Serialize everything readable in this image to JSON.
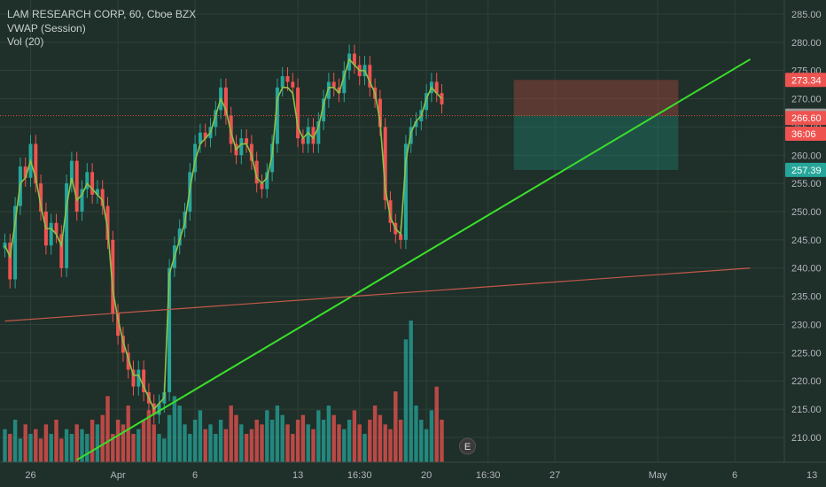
{
  "legend": {
    "symbol": "LAM RESEARCH CORP, 60, Cboe BZX",
    "vwap": "VWAP (Session)",
    "vol": "Vol (20)"
  },
  "colors": {
    "background": "#1f2f29",
    "grid": "#2e4038",
    "up": "#26a69a",
    "down": "#ef5350",
    "vwap": "#8bc34a",
    "trendline_green": "#39e02a",
    "trendline_red": "#c15a4a",
    "axis_text": "#b2b5be",
    "price_line": "#e0573a"
  },
  "chart_data": {
    "type": "candlestick",
    "title": "LAM RESEARCH CORP, 60, Cboe BZX",
    "xlabel": "",
    "ylabel": "",
    "ylim": [
      205.6,
      287.5
    ],
    "y_ticks": [
      210,
      215,
      220,
      225,
      230,
      235,
      240,
      245,
      250,
      255,
      260,
      265,
      270,
      275,
      280,
      285
    ],
    "x_ticks": [
      {
        "label": "26",
        "bar": 5
      },
      {
        "label": "Apr",
        "bar": 22
      },
      {
        "label": "6",
        "bar": 37
      },
      {
        "label": "13",
        "bar": 57
      },
      {
        "label": "16:30",
        "bar": 69
      },
      {
        "label": "20",
        "bar": 82
      },
      {
        "label": "16:30",
        "bar": 94
      },
      {
        "label": "27",
        "bar": 107
      },
      {
        "label": "May",
        "bar": 127
      },
      {
        "label": "6",
        "bar": 142
      },
      {
        "label": "13",
        "bar": 157
      }
    ],
    "series_close": [
      244.5,
      238,
      251,
      258,
      256,
      262,
      255,
      250,
      244,
      248,
      246,
      240,
      255,
      259,
      250,
      254,
      257,
      253,
      254,
      251,
      245,
      232,
      228,
      225,
      222,
      219,
      222,
      218,
      216,
      214,
      216,
      218,
      240,
      244,
      247,
      250,
      257,
      262,
      264,
      263,
      265,
      268,
      272,
      267,
      262,
      260,
      263,
      262,
      259,
      255,
      254,
      257,
      262,
      272,
      274,
      273,
      272,
      263,
      262,
      265,
      262,
      266,
      270,
      273,
      272,
      271,
      275,
      278,
      276,
      274,
      276,
      272,
      270,
      265,
      252,
      248,
      246,
      245,
      262,
      265,
      266,
      268,
      271,
      273,
      271,
      269,
      null,
      null,
      null,
      null,
      null,
      null,
      null,
      null,
      null,
      null,
      null,
      null,
      null,
      null,
      null,
      null,
      null,
      null,
      null,
      null,
      null,
      null,
      null,
      null,
      null,
      null,
      null,
      null,
      null,
      null,
      null,
      null,
      null,
      null,
      null,
      null,
      null,
      null,
      null,
      null,
      null,
      null,
      null,
      null,
      null,
      null,
      null,
      null,
      null,
      null,
      null,
      null,
      null,
      null,
      null,
      null,
      null,
      null,
      null,
      null,
      null,
      null,
      null,
      null,
      null,
      null,
      null,
      null,
      null,
      null,
      null,
      null,
      null
    ],
    "vwap": [
      244,
      242,
      248,
      255,
      256,
      259,
      256,
      251,
      247,
      247,
      246,
      244,
      251,
      256,
      252,
      253,
      255,
      254,
      253,
      252,
      247,
      236,
      231,
      227,
      224,
      221,
      221,
      219,
      217,
      215,
      216,
      217,
      239,
      242,
      245,
      248,
      254,
      259,
      262,
      263,
      264,
      267,
      270,
      268,
      264,
      261,
      262,
      262,
      260,
      256,
      255,
      256,
      260,
      270,
      272,
      272,
      271,
      265,
      263,
      264,
      263,
      265,
      269,
      272,
      272,
      271,
      274,
      277,
      276,
      275,
      275,
      273,
      271,
      266,
      254,
      249,
      247,
      246,
      259,
      264,
      266,
      267,
      270,
      272,
      271,
      270
    ],
    "volume": [
      7,
      6,
      9,
      5,
      8,
      6,
      7,
      5,
      8,
      6,
      9,
      5,
      7,
      6,
      8,
      7,
      6,
      9,
      8,
      10,
      14,
      6,
      9,
      8,
      12,
      6,
      7,
      9,
      11,
      8,
      6,
      5,
      10,
      14,
      12,
      8,
      6,
      9,
      11,
      7,
      8,
      6,
      9,
      7,
      12,
      10,
      8,
      6,
      7,
      9,
      8,
      11,
      9,
      12,
      10,
      8,
      6,
      9,
      10,
      8,
      7,
      11,
      9,
      12,
      10,
      8,
      7,
      9,
      11,
      8,
      6,
      9,
      12,
      10,
      8,
      7,
      15,
      9,
      26,
      30,
      12,
      9,
      7,
      11,
      16,
      9
    ],
    "volume_dir": [
      1,
      0,
      1,
      1,
      0,
      1,
      0,
      0,
      0,
      1,
      0,
      0,
      1,
      1,
      0,
      1,
      1,
      0,
      1,
      0,
      0,
      0,
      0,
      0,
      0,
      0,
      1,
      0,
      0,
      0,
      1,
      1,
      1,
      1,
      1,
      1,
      1,
      1,
      1,
      0,
      1,
      1,
      1,
      0,
      0,
      0,
      1,
      0,
      0,
      0,
      0,
      1,
      1,
      1,
      1,
      0,
      0,
      0,
      0,
      1,
      0,
      1,
      1,
      1,
      0,
      0,
      1,
      1,
      0,
      0,
      1,
      0,
      0,
      0,
      0,
      0,
      0,
      0,
      1,
      1,
      1,
      1,
      1,
      1,
      0,
      0
    ],
    "last_price": 267.01,
    "price_labels": [
      {
        "text": "273.34",
        "value": 273.34,
        "color": "#ef5350"
      },
      {
        "text": "267.01",
        "value": 267.01,
        "color": "#9e9e9e"
      },
      {
        "text": "266.60",
        "value": 266.6,
        "color": "#ef5350"
      },
      {
        "text": "36:06",
        "value": 263.8,
        "color": "#ef5350"
      },
      {
        "text": "257.39",
        "value": 257.39,
        "color": "#26a69a"
      }
    ],
    "position_box": {
      "bar_start": 99,
      "bar_end": 131,
      "stop": 273.34,
      "entry": 267.01,
      "target": 257.39
    },
    "trendlines": [
      {
        "color": "green",
        "from": {
          "bar": 14,
          "price": 206
        },
        "to": {
          "bar": 145,
          "price": 277
        }
      },
      {
        "color": "red",
        "from": {
          "bar": 0,
          "price": 230.6
        },
        "to": {
          "bar": 145,
          "price": 240
        }
      }
    ],
    "earnings_marker": {
      "label": "E",
      "bar": 90
    }
  }
}
